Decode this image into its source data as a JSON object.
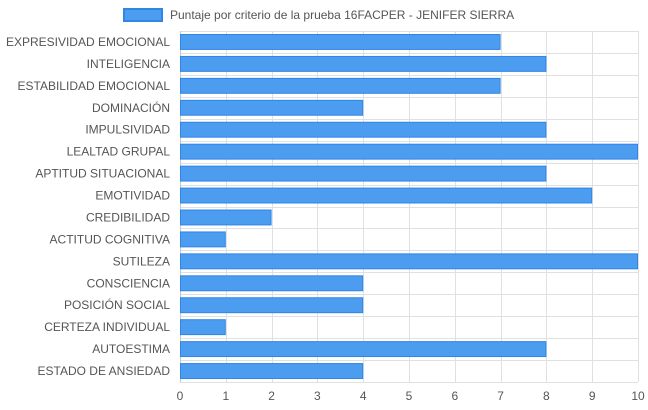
{
  "chart_data": {
    "type": "bar",
    "orientation": "horizontal",
    "legend": {
      "label": "Puntaje por criterio de la prueba 16FACPER - JENIFER SIERRA",
      "position": "top"
    },
    "categories": [
      "EXPRESIVIDAD EMOCIONAL",
      "INTELIGENCIA",
      "ESTABILIDAD EMOCIONAL",
      "DOMINACIÓN",
      "IMPULSIVIDAD",
      "LEALTAD GRUPAL",
      "APTITUD SITUACIONAL",
      "EMOTIVIDAD",
      "CREDIBILIDAD",
      "ACTITUD COGNITIVA",
      "SUTILEZA",
      "CONSCIENCIA",
      "POSICIÓN SOCIAL",
      "CERTEZA INDIVIDUAL",
      "AUTOESTIMA",
      "ESTADO DE ANSIEDAD"
    ],
    "series": [
      {
        "name": "Puntaje por criterio de la prueba 16FACPER - JENIFER SIERRA",
        "values": [
          7,
          8,
          7,
          4,
          8,
          10,
          8,
          9,
          2,
          1,
          10,
          4,
          4,
          1,
          8,
          4
        ]
      }
    ],
    "xlim": [
      0,
      10
    ],
    "xticks": [
      0,
      1,
      2,
      3,
      4,
      5,
      6,
      7,
      8,
      9,
      10
    ],
    "grid": true,
    "colors": {
      "bar_fill": "#4c9cf0",
      "bar_stroke": "#2f86e6",
      "grid": "#e0e0e0",
      "text": "#555555"
    }
  }
}
